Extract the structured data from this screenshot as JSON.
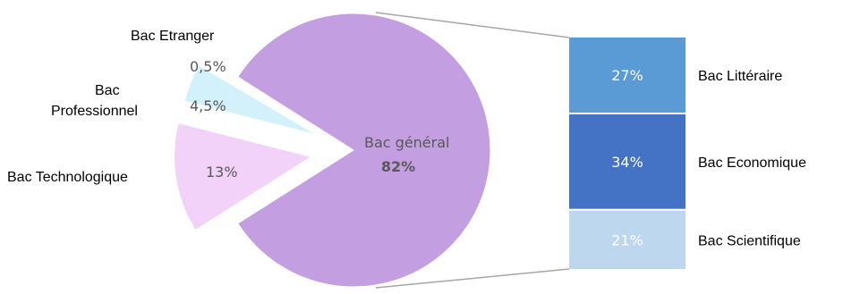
{
  "chart_data": {
    "type": "pie",
    "slices": [
      {
        "name": "Bac général",
        "value": 82,
        "label": "82%",
        "color": "#c39ee0"
      },
      {
        "name": "Bac Technologique",
        "value": 13,
        "label": "13%",
        "color": "#f3d2fa"
      },
      {
        "name": "Bac Professionnel",
        "value": 4.5,
        "label": "4,5%",
        "color": "#d2f1fb"
      },
      {
        "name": "Bac Etranger",
        "value": 0.5,
        "label": "0,5%",
        "color": "#ffffff"
      }
    ],
    "breakdown": {
      "of": "Bac général",
      "type": "stacked_bar",
      "segments": [
        {
          "name": "Bac Littéraire",
          "value": 27,
          "label": "27%",
          "color": "#5b9bd5"
        },
        {
          "name": "Bac Economique",
          "value": 34,
          "label": "34%",
          "color": "#4472c4"
        },
        {
          "name": "Bac Scientifique",
          "value": 21,
          "label": "21%",
          "color": "#bdd7ee"
        }
      ]
    }
  },
  "labels": {
    "bac_etranger": "Bac Etranger",
    "bac_professionnel_line1": "Bac",
    "bac_professionnel_line2": "Professionnel",
    "bac_technologique": "Bac Technologique",
    "bac_general": "Bac général",
    "bac_general_pct": "82%",
    "bac_etranger_pct": "0,5%",
    "bac_professionnel_pct": "4,5%",
    "bac_technologique_pct": "13%"
  }
}
